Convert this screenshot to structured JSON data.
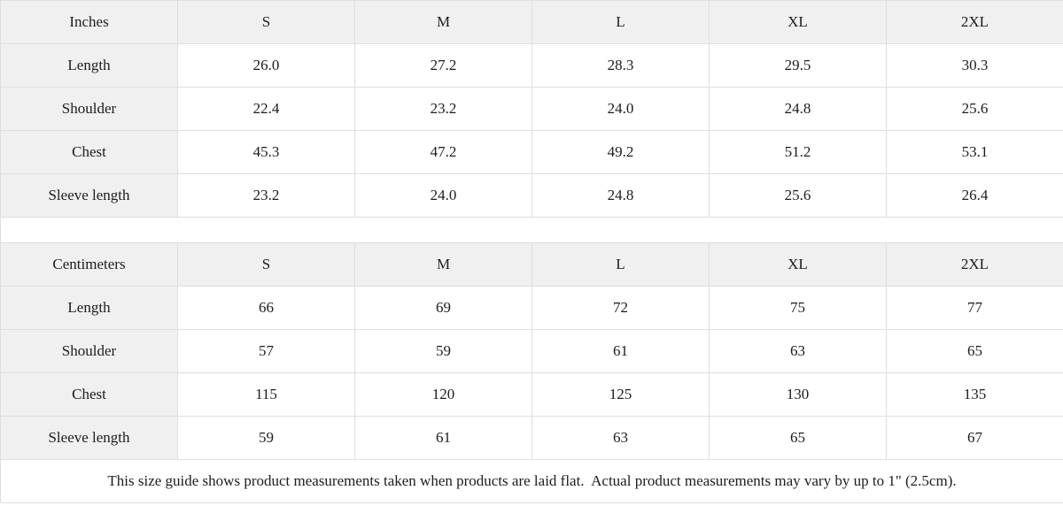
{
  "size_guide": {
    "tables": [
      {
        "unit_label": "Inches",
        "sizes": [
          "S",
          "M",
          "L",
          "XL",
          "2XL"
        ],
        "rows": [
          {
            "label": "Length",
            "values": [
              "26.0",
              "27.2",
              "28.3",
              "29.5",
              "30.3"
            ]
          },
          {
            "label": "Shoulder",
            "values": [
              "22.4",
              "23.2",
              "24.0",
              "24.8",
              "25.6"
            ]
          },
          {
            "label": "Chest",
            "values": [
              "45.3",
              "47.2",
              "49.2",
              "51.2",
              "53.1"
            ]
          },
          {
            "label": "Sleeve length",
            "values": [
              "23.2",
              "24.0",
              "24.8",
              "25.6",
              "26.4"
            ]
          }
        ]
      },
      {
        "unit_label": "Centimeters",
        "sizes": [
          "S",
          "M",
          "L",
          "XL",
          "2XL"
        ],
        "rows": [
          {
            "label": "Length",
            "values": [
              "66",
              "69",
              "72",
              "75",
              "77"
            ]
          },
          {
            "label": "Shoulder",
            "values": [
              "57",
              "59",
              "61",
              "63",
              "65"
            ]
          },
          {
            "label": "Chest",
            "values": [
              "115",
              "120",
              "125",
              "130",
              "135"
            ]
          },
          {
            "label": "Sleeve length",
            "values": [
              "59",
              "61",
              "63",
              "65",
              "67"
            ]
          }
        ]
      }
    ],
    "footnote": "This size guide shows product measurements taken when products are laid flat.  Actual product measurements may vary by up to 1\" (2.5cm).",
    "colors": {
      "shaded_cell_bg": "#f0f0f0",
      "border": "#dedede",
      "text": "#1c1c1c",
      "data_cell_bg": "#ffffff"
    }
  }
}
